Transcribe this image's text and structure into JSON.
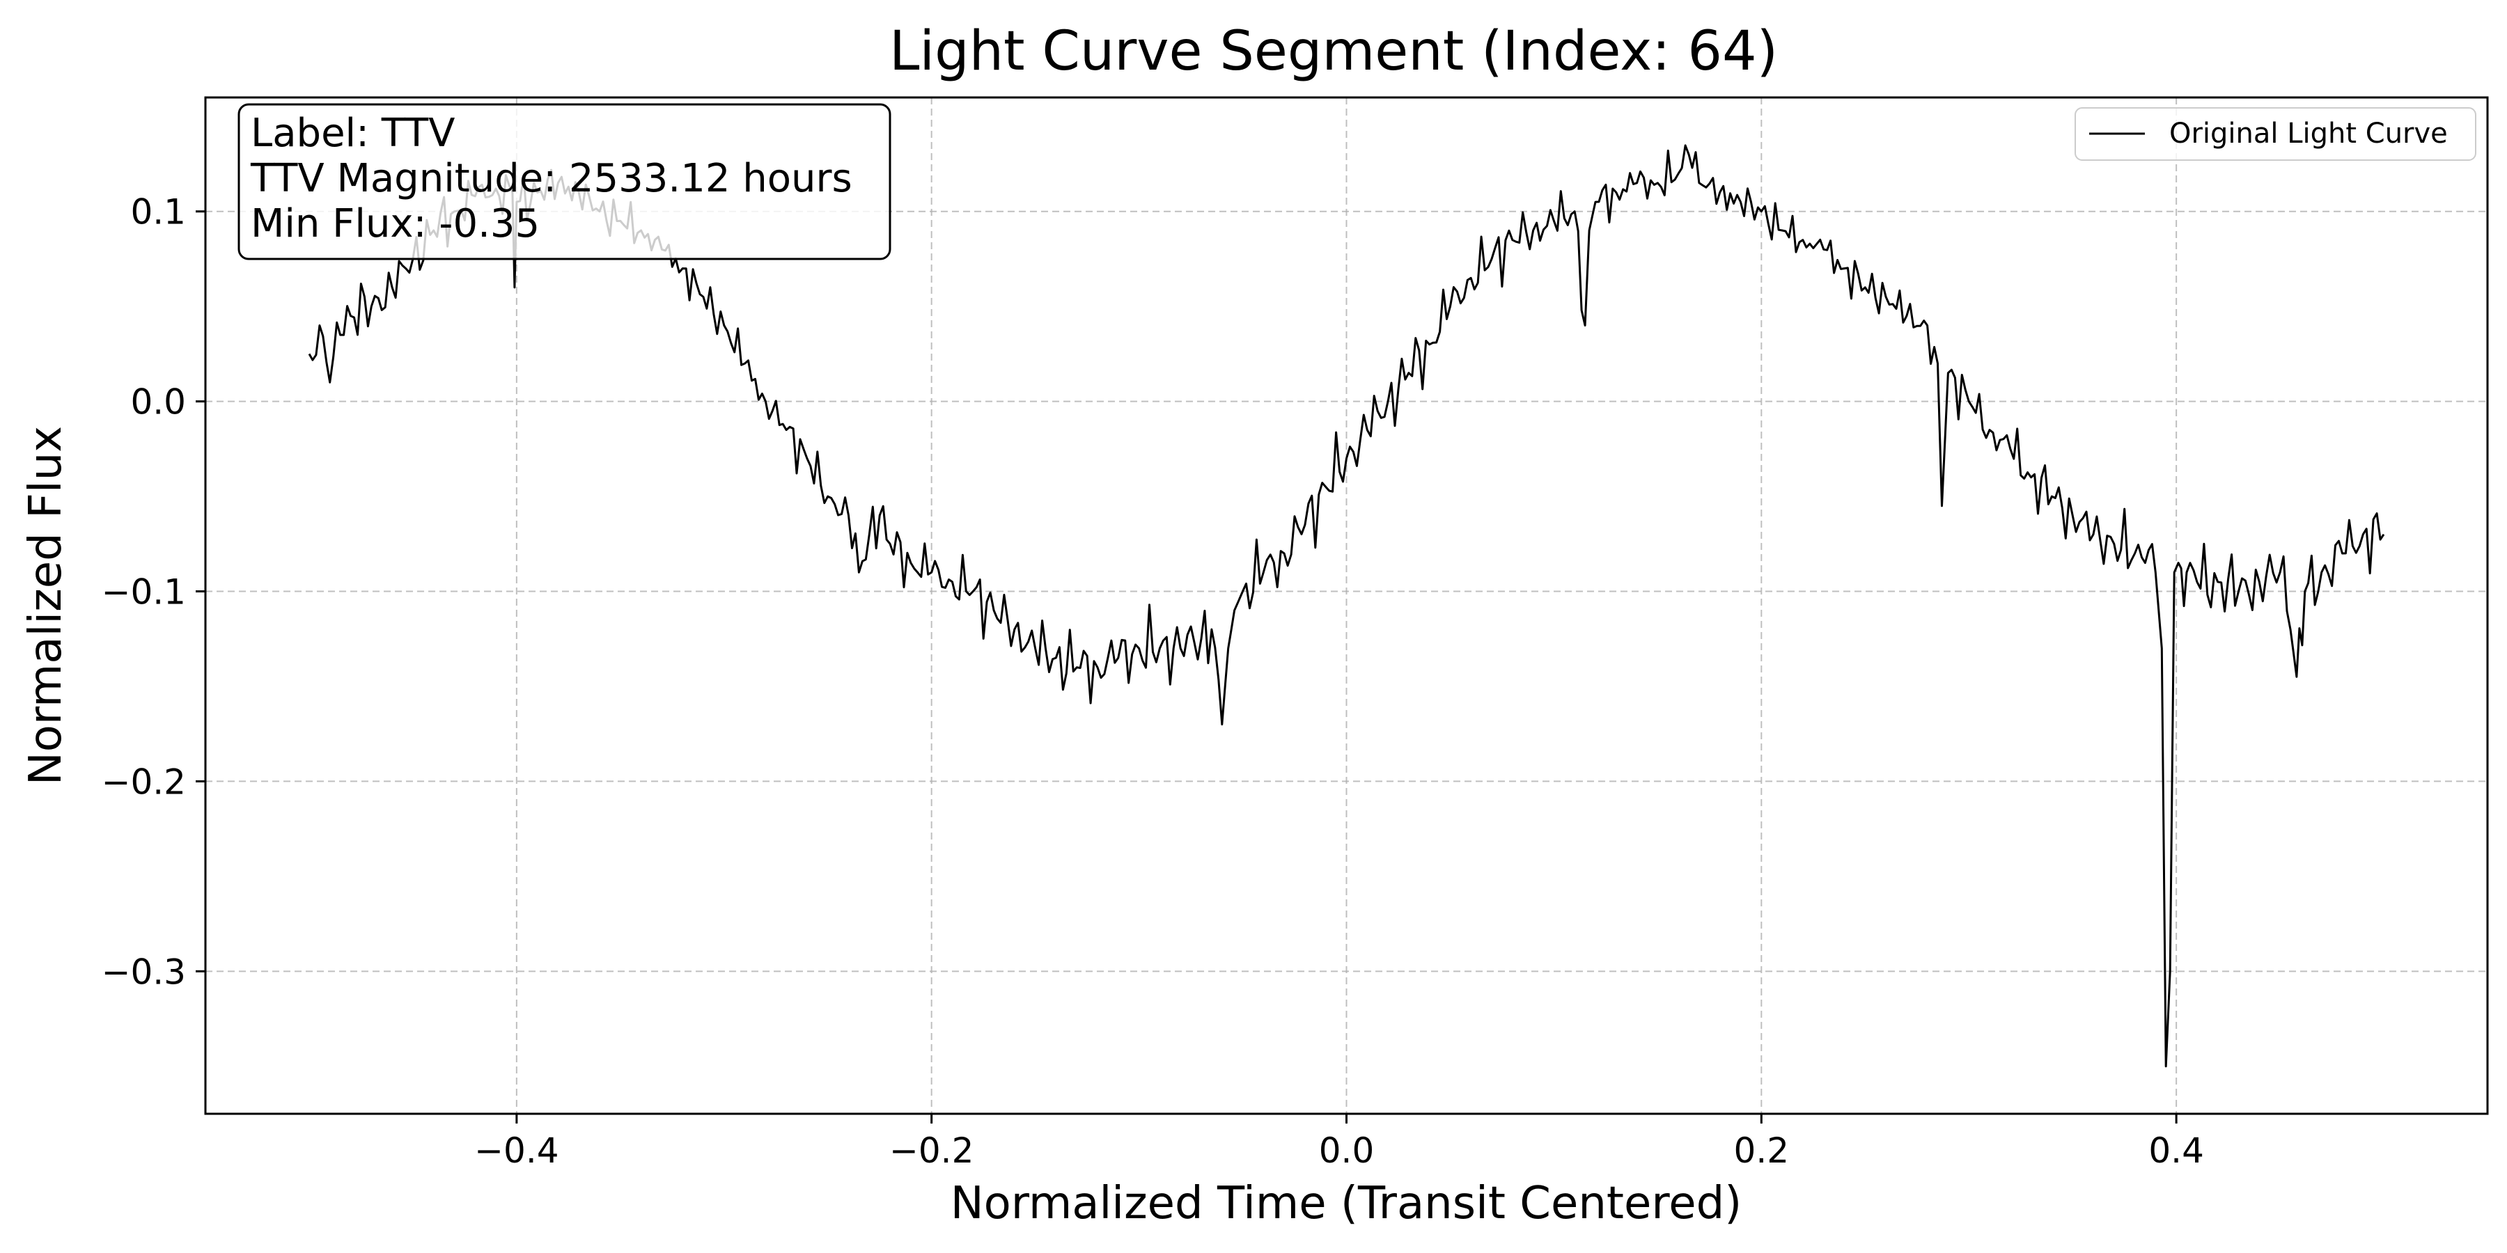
{
  "chart_data": {
    "type": "line",
    "title": "Light Curve Segment (Index: 64)",
    "xlabel": "Normalized Time (Transit Centered)",
    "ylabel": "Normalized Flux",
    "xlim": [
      -0.55,
      0.55
    ],
    "ylim": [
      -0.375,
      0.16
    ],
    "x_ticks": [
      -0.4,
      -0.2,
      0.0,
      0.2,
      0.4
    ],
    "x_tick_labels": [
      "−0.4",
      "−0.2",
      "0.0",
      "0.2",
      "0.4"
    ],
    "y_ticks": [
      0.1,
      0.0,
      -0.1,
      -0.2,
      -0.3
    ],
    "y_tick_labels": [
      "0.1",
      "0.0",
      "−0.1",
      "−0.2",
      "−0.3"
    ],
    "grid": true,
    "legend_position": "top-right",
    "series": [
      {
        "name": "Original Light Curve",
        "color": "#000000",
        "x": [
          -0.5,
          -0.495,
          -0.49,
          -0.485,
          -0.48,
          -0.47,
          -0.46,
          -0.45,
          -0.44,
          -0.43,
          -0.42,
          -0.41,
          -0.402,
          -0.401,
          -0.4,
          -0.39,
          -0.38,
          -0.37,
          -0.36,
          -0.35,
          -0.34,
          -0.33,
          -0.32,
          -0.31,
          -0.3,
          -0.29,
          -0.28,
          -0.27,
          -0.26,
          -0.25,
          -0.24,
          -0.235,
          -0.23,
          -0.225,
          -0.22,
          -0.21,
          -0.2,
          -0.19,
          -0.18,
          -0.17,
          -0.16,
          -0.15,
          -0.14,
          -0.13,
          -0.12,
          -0.11,
          -0.1,
          -0.09,
          -0.08,
          -0.07,
          -0.065,
          -0.06,
          -0.057,
          -0.054,
          -0.05,
          -0.04,
          -0.03,
          -0.02,
          -0.01,
          0.0,
          0.01,
          0.02,
          0.03,
          0.04,
          0.05,
          0.06,
          0.07,
          0.08,
          0.09,
          0.1,
          0.11,
          0.115,
          0.117,
          0.12,
          0.13,
          0.14,
          0.15,
          0.16,
          0.165,
          0.17,
          0.18,
          0.19,
          0.2,
          0.21,
          0.22,
          0.23,
          0.24,
          0.25,
          0.26,
          0.27,
          0.28,
          0.285,
          0.287,
          0.29,
          0.3,
          0.31,
          0.32,
          0.33,
          0.34,
          0.35,
          0.36,
          0.37,
          0.38,
          0.385,
          0.39,
          0.393,
          0.395,
          0.397,
          0.399,
          0.401,
          0.405,
          0.41,
          0.42,
          0.43,
          0.44,
          0.45,
          0.455,
          0.458,
          0.462,
          0.47,
          0.48,
          0.49,
          0.5
        ],
        "y": [
          0.025,
          0.04,
          0.01,
          0.035,
          0.045,
          0.05,
          0.06,
          0.075,
          0.09,
          0.1,
          0.108,
          0.112,
          0.11,
          0.06,
          0.105,
          0.11,
          0.115,
          0.11,
          0.1,
          0.095,
          0.09,
          0.08,
          0.07,
          0.055,
          0.04,
          0.02,
          0.0,
          -0.015,
          -0.03,
          -0.05,
          -0.06,
          -0.09,
          -0.07,
          -0.06,
          -0.075,
          -0.085,
          -0.09,
          -0.095,
          -0.1,
          -0.11,
          -0.12,
          -0.13,
          -0.135,
          -0.14,
          -0.14,
          -0.135,
          -0.13,
          -0.13,
          -0.13,
          -0.125,
          -0.12,
          -0.17,
          -0.13,
          -0.11,
          -0.1,
          -0.09,
          -0.08,
          -0.065,
          -0.045,
          -0.03,
          -0.015,
          0.0,
          0.015,
          0.03,
          0.05,
          0.065,
          0.075,
          0.085,
          0.09,
          0.095,
          0.1,
          0.04,
          0.09,
          0.105,
          0.11,
          0.115,
          0.115,
          0.12,
          0.13,
          0.115,
          0.11,
          0.105,
          0.1,
          0.09,
          0.085,
          0.08,
          0.07,
          0.06,
          0.055,
          0.045,
          0.04,
          0.02,
          -0.055,
          0.015,
          0.0,
          -0.015,
          -0.025,
          -0.04,
          -0.05,
          -0.06,
          -0.07,
          -0.075,
          -0.08,
          -0.085,
          -0.09,
          -0.13,
          -0.35,
          -0.3,
          -0.09,
          -0.085,
          -0.09,
          -0.095,
          -0.095,
          -0.1,
          -0.095,
          -0.09,
          -0.12,
          -0.145,
          -0.1,
          -0.09,
          -0.08,
          -0.07,
          -0.07
        ]
      }
    ],
    "annotation": {
      "lines": [
        "Label: TTV",
        "TTV Magnitude: 2533.12 hours",
        "Min Flux: -0.35"
      ],
      "position": "top-left"
    }
  }
}
